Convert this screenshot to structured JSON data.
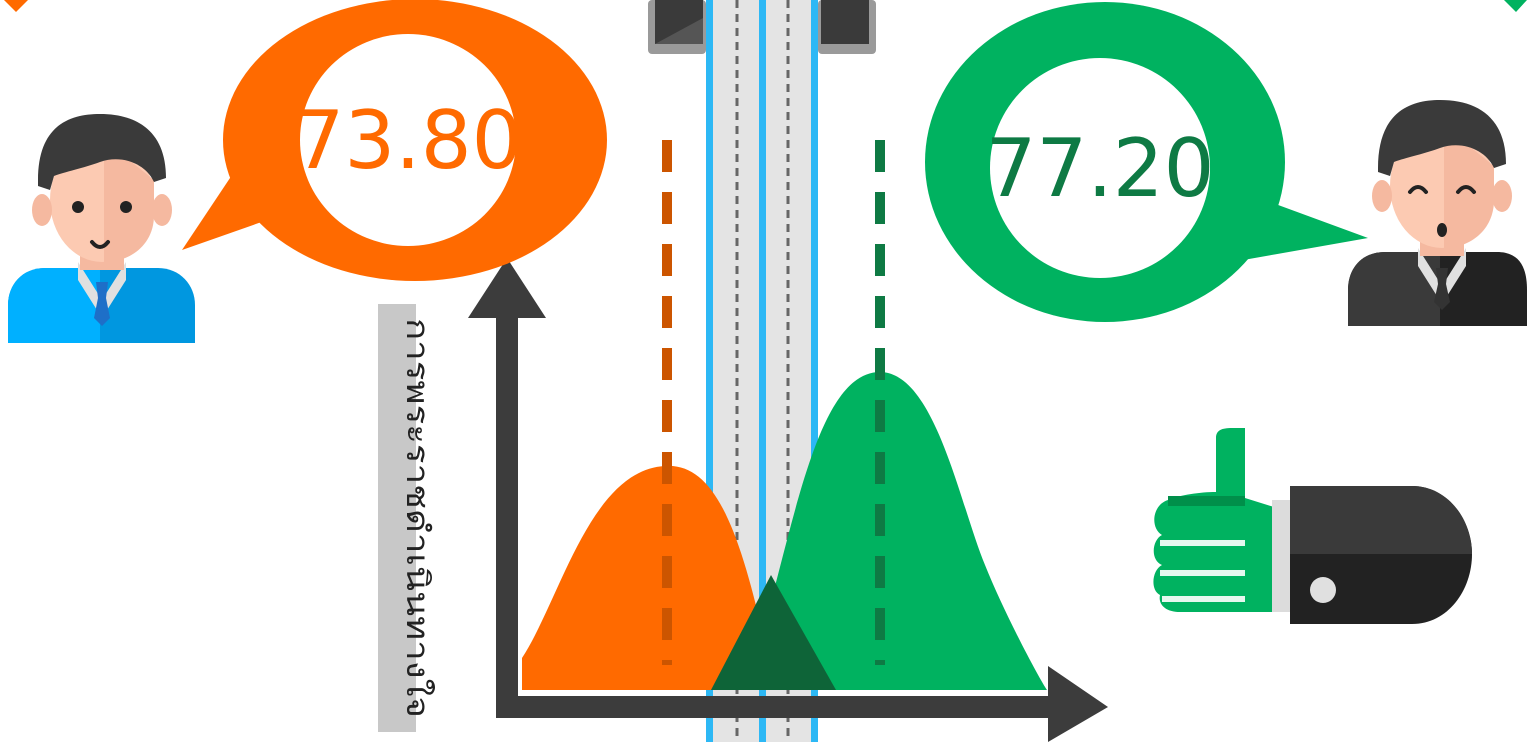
{
  "left_person": {
    "score": "73.80"
  },
  "right_person": {
    "score": "77.20"
  },
  "y_axis_label": "การพระราชดำเนินทางใจ",
  "colors": {
    "orange": "#ff6a00",
    "green": "#00b260",
    "overlap": "#0e6438",
    "axis": "#3c3c3c",
    "road_edge": "#2db8f5",
    "label_bg": "#c8c8c8"
  },
  "chart_data": {
    "type": "area",
    "series": [
      {
        "mean": 73.8
      },
      {
        "mean": 77.2
      }
    ]
  }
}
